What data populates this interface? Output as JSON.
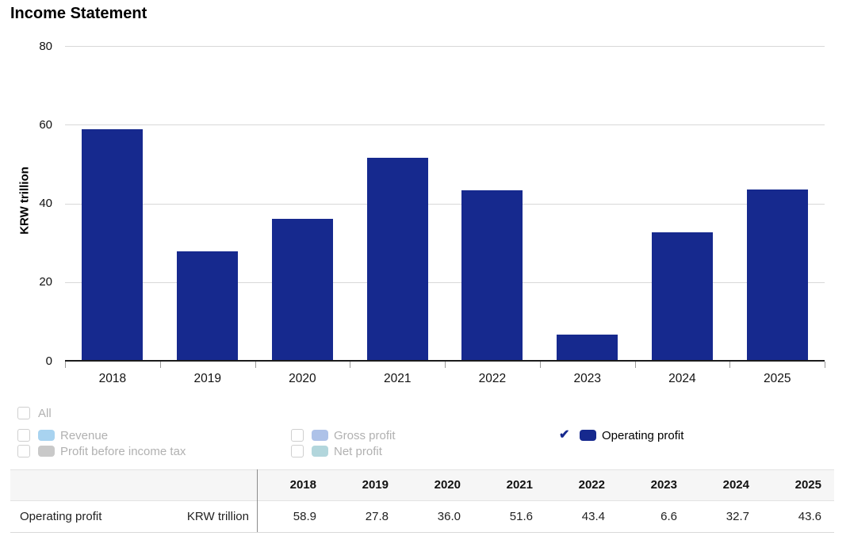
{
  "page": {
    "title": "Income Statement"
  },
  "chart_data": {
    "type": "bar",
    "title": "Income Statement",
    "categories": [
      "2018",
      "2019",
      "2020",
      "2021",
      "2022",
      "2023",
      "2024",
      "2025"
    ],
    "series": [
      {
        "name": "Operating profit",
        "color": "#16298e",
        "values": [
          58.9,
          27.8,
          36.0,
          51.6,
          43.4,
          6.6,
          32.7,
          43.6
        ]
      }
    ],
    "xlabel": "",
    "ylabel": "KRW trillion",
    "ylim": [
      0,
      80
    ],
    "yticks": [
      0,
      20,
      40,
      60,
      80
    ],
    "grid": true,
    "legend_position": "bottom"
  },
  "legend": {
    "check_color": "#16298e",
    "items": [
      {
        "id": "all",
        "label": "All",
        "checked": false,
        "swatch": null,
        "row": 0,
        "col": 0
      },
      {
        "id": "revenue",
        "label": "Revenue",
        "checked": false,
        "swatch": "#a8d3f0",
        "row": 1,
        "col": 0
      },
      {
        "id": "gross-profit",
        "label": "Gross profit",
        "checked": false,
        "swatch": "#aec2e8",
        "row": 1,
        "col": 1
      },
      {
        "id": "operating-profit",
        "label": "Operating profit",
        "checked": true,
        "swatch": "#16298e",
        "row": 1,
        "col": 2
      },
      {
        "id": "profit-before-income-tax",
        "label": "Profit before income tax",
        "checked": false,
        "swatch": "#c9c9c9",
        "row": 2,
        "col": 0
      },
      {
        "id": "net-profit",
        "label": "Net profit",
        "checked": false,
        "swatch": "#b2d6dc",
        "row": 2,
        "col": 1
      }
    ]
  },
  "table": {
    "years": [
      "2018",
      "2019",
      "2020",
      "2021",
      "2022",
      "2023",
      "2024",
      "2025"
    ],
    "rows": [
      {
        "label": "Operating profit",
        "unit": "KRW trillion",
        "values": [
          "58.9",
          "27.8",
          "36.0",
          "51.6",
          "43.4",
          "6.6",
          "32.7",
          "43.6"
        ]
      }
    ]
  },
  "colors": {
    "bar": "#16298e",
    "grid": "#d8d8d8",
    "axis": "#1c1c1c",
    "tick": "#999999",
    "legend_text": "#b1b1b1",
    "active_text": "#000000",
    "table_header_bg": "#f6f6f6",
    "table_border": "#e3e3e3",
    "table_divider": "#8c8c8c"
  }
}
